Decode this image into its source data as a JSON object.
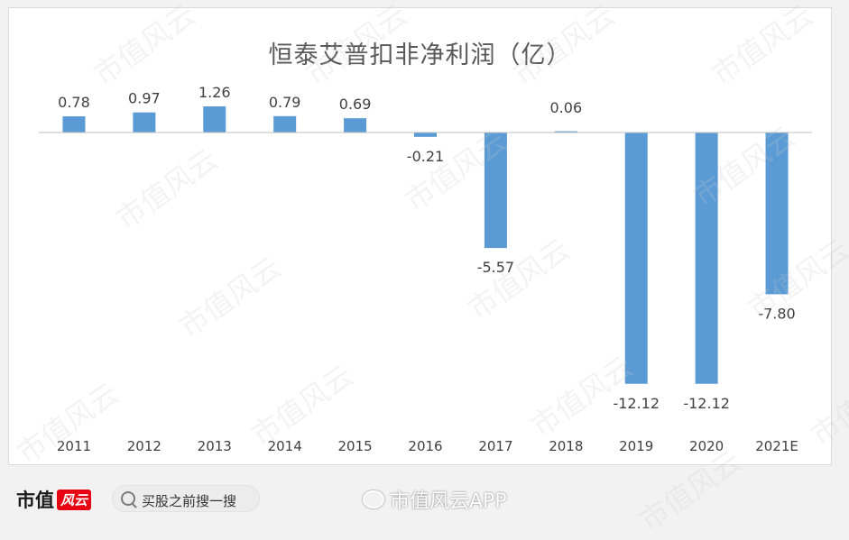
{
  "chart_data": {
    "type": "bar",
    "title": "恒泰艾普扣非净利润（亿）",
    "categories": [
      "2011",
      "2012",
      "2013",
      "2014",
      "2015",
      "2016",
      "2017",
      "2018",
      "2019",
      "2020",
      "2021E"
    ],
    "values": [
      0.78,
      0.97,
      1.26,
      0.79,
      0.69,
      -0.21,
      -5.57,
      0.06,
      -12.12,
      -12.12,
      -7.8
    ],
    "value_labels": [
      "0.78",
      "0.97",
      "1.26",
      "0.79",
      "0.69",
      "-0.21",
      "-5.57",
      "0.06",
      "-12.12",
      "-12.12",
      "-7.80"
    ],
    "xlabel": "",
    "ylabel": "",
    "ylim": [
      -12.5,
      1.5
    ],
    "grid": false,
    "legend": "none",
    "bar_color": "#5b9bd5"
  },
  "footer": {
    "brand": "市值",
    "brand_tag": "风云",
    "search_text": "买股之前搜一搜",
    "weibo_text": "市值风云APP"
  },
  "watermark": "市值风云"
}
